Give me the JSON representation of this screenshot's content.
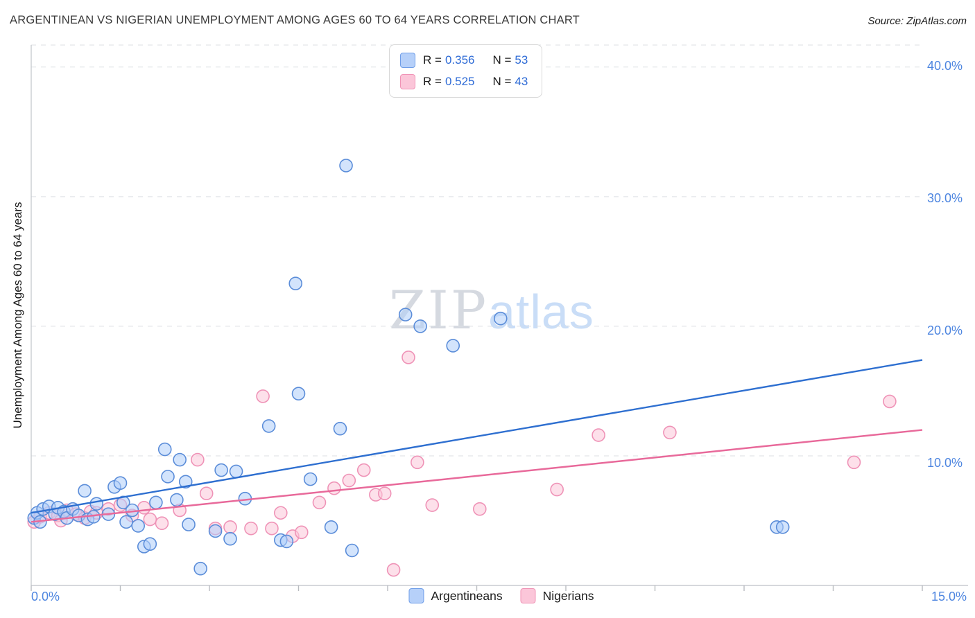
{
  "header": {
    "title": "ARGENTINEAN VS NIGERIAN UNEMPLOYMENT AMONG AGES 60 TO 64 YEARS CORRELATION CHART",
    "source": "Source: ZipAtlas.com"
  },
  "axis": {
    "ylabel": "Unemployment Among Ages 60 to 64 years",
    "y_tick_labels": [
      "40.0%",
      "30.0%",
      "20.0%",
      "10.0%"
    ],
    "x_min_label": "0.0%",
    "x_max_label": "15.0%"
  },
  "legend_box": {
    "rows": [
      {
        "series": "Argentineans",
        "r_label": "R =",
        "r_value": "0.356",
        "n_label": "N =",
        "n_value": "53"
      },
      {
        "series": "Nigerians",
        "r_label": "R =",
        "r_value": "0.525",
        "n_label": "N =",
        "n_value": "43"
      }
    ]
  },
  "bottom_legend": {
    "items": [
      {
        "label": "Argentineans",
        "fill": "#b6d0f9",
        "stroke": "#6f9ee8"
      },
      {
        "label": "Nigerians",
        "fill": "#fbc6d9",
        "stroke": "#f093b6"
      }
    ]
  },
  "watermark": {
    "part1": "ZIP",
    "part2": "atlas"
  },
  "chart_data": {
    "type": "scatter",
    "title": "Argentinean vs Nigerian Unemployment Among Ages 60 to 64 Years Correlation Chart",
    "xlabel": "",
    "ylabel": "Unemployment Among Ages 60 to 64 years",
    "x_unit": "%",
    "y_unit": "%",
    "xlim": [
      0,
      15
    ],
    "ylim": [
      0,
      41.7
    ],
    "x_tick_step": 1.5,
    "grid_y": [
      10,
      20,
      30,
      40
    ],
    "grid_style": "dashed",
    "legend_position": "top-center",
    "point_radius": 9,
    "series": [
      {
        "name": "Argentineans",
        "R": 0.356,
        "N": 53,
        "fill": "#aecdfa",
        "stroke": "#5b8dd9",
        "points": [
          [
            0.05,
            5.2
          ],
          [
            0.1,
            5.6
          ],
          [
            0.15,
            4.9
          ],
          [
            0.2,
            5.9
          ],
          [
            0.3,
            6.1
          ],
          [
            0.4,
            5.5
          ],
          [
            0.45,
            6.0
          ],
          [
            0.55,
            5.7
          ],
          [
            0.6,
            5.2
          ],
          [
            0.7,
            5.9
          ],
          [
            0.8,
            5.4
          ],
          [
            0.9,
            7.3
          ],
          [
            0.95,
            5.1
          ],
          [
            1.05,
            5.3
          ],
          [
            1.1,
            6.3
          ],
          [
            1.3,
            5.5
          ],
          [
            1.4,
            7.6
          ],
          [
            1.5,
            7.9
          ],
          [
            1.55,
            6.4
          ],
          [
            1.6,
            4.9
          ],
          [
            1.7,
            5.8
          ],
          [
            1.8,
            4.6
          ],
          [
            1.9,
            3.0
          ],
          [
            2.0,
            3.2
          ],
          [
            2.1,
            6.4
          ],
          [
            2.25,
            10.5
          ],
          [
            2.3,
            8.4
          ],
          [
            2.45,
            6.6
          ],
          [
            2.5,
            9.7
          ],
          [
            2.6,
            8.0
          ],
          [
            2.65,
            4.7
          ],
          [
            2.85,
            1.3
          ],
          [
            3.1,
            4.2
          ],
          [
            3.2,
            8.9
          ],
          [
            3.35,
            3.6
          ],
          [
            3.45,
            8.8
          ],
          [
            3.6,
            6.7
          ],
          [
            4.0,
            12.3
          ],
          [
            4.2,
            3.5
          ],
          [
            4.3,
            3.4
          ],
          [
            4.45,
            23.3
          ],
          [
            4.5,
            14.8
          ],
          [
            4.7,
            8.2
          ],
          [
            5.05,
            4.5
          ],
          [
            5.2,
            12.1
          ],
          [
            5.3,
            32.4
          ],
          [
            5.4,
            2.7
          ],
          [
            6.3,
            20.9
          ],
          [
            6.55,
            20.0
          ],
          [
            7.1,
            18.5
          ],
          [
            7.9,
            20.6
          ],
          [
            12.55,
            4.5
          ],
          [
            12.65,
            4.5
          ]
        ]
      },
      {
        "name": "Nigerians",
        "R": 0.525,
        "N": 43,
        "fill": "#fbc6d9",
        "stroke": "#ef93b7",
        "points": [
          [
            0.05,
            4.9
          ],
          [
            0.15,
            5.3
          ],
          [
            0.3,
            5.6
          ],
          [
            0.45,
            5.4
          ],
          [
            0.5,
            5.0
          ],
          [
            0.6,
            5.8
          ],
          [
            0.75,
            5.5
          ],
          [
            0.9,
            5.2
          ],
          [
            1.0,
            5.7
          ],
          [
            1.1,
            5.6
          ],
          [
            1.3,
            5.9
          ],
          [
            1.5,
            6.2
          ],
          [
            1.7,
            5.4
          ],
          [
            1.9,
            6.0
          ],
          [
            2.0,
            5.1
          ],
          [
            2.2,
            4.8
          ],
          [
            2.5,
            5.8
          ],
          [
            2.8,
            9.7
          ],
          [
            2.95,
            7.1
          ],
          [
            3.1,
            4.4
          ],
          [
            3.35,
            4.5
          ],
          [
            3.7,
            4.4
          ],
          [
            3.9,
            14.6
          ],
          [
            4.05,
            4.4
          ],
          [
            4.2,
            5.6
          ],
          [
            4.4,
            3.8
          ],
          [
            4.55,
            4.1
          ],
          [
            4.85,
            6.4
          ],
          [
            5.1,
            7.5
          ],
          [
            5.35,
            8.1
          ],
          [
            5.6,
            8.9
          ],
          [
            5.8,
            7.0
          ],
          [
            5.95,
            7.1
          ],
          [
            6.1,
            1.2
          ],
          [
            6.35,
            17.6
          ],
          [
            6.5,
            9.5
          ],
          [
            6.75,
            6.2
          ],
          [
            7.55,
            5.9
          ],
          [
            8.85,
            7.4
          ],
          [
            9.55,
            11.6
          ],
          [
            10.75,
            11.8
          ],
          [
            13.85,
            9.5
          ],
          [
            14.45,
            14.2
          ]
        ]
      }
    ],
    "trend_lines": [
      {
        "series": "Argentineans",
        "color": "#2e6fd0",
        "x0": 0,
        "y0": 5.6,
        "x1": 15,
        "y1": 17.4
      },
      {
        "series": "Nigerians",
        "color": "#e8699a",
        "x0": 0,
        "y0": 4.9,
        "x1": 15,
        "y1": 12.0
      }
    ]
  }
}
